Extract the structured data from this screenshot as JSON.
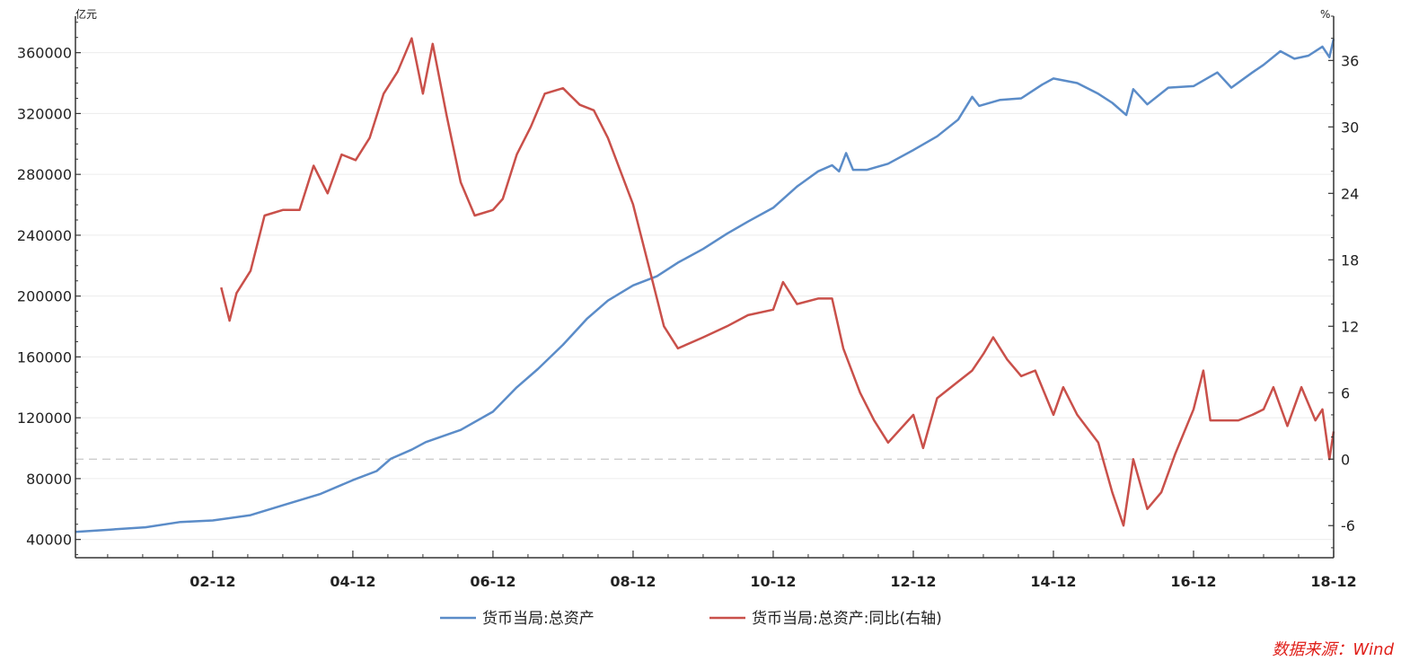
{
  "chart_data": {
    "type": "line",
    "left_axis": {
      "unit": "亿元",
      "ylim": [
        28000,
        384000
      ],
      "ticks": [
        40000,
        80000,
        120000,
        160000,
        200000,
        240000,
        280000,
        320000,
        360000
      ],
      "tick_labels": [
        "40000",
        "80000",
        "120000",
        "160000",
        "200000",
        "240000",
        "280000",
        "320000",
        "360000"
      ]
    },
    "right_axis": {
      "unit": "%",
      "ylim": [
        -8.9,
        40
      ],
      "ticks": [
        -6,
        0,
        6,
        12,
        18,
        24,
        30,
        36
      ],
      "tick_labels": [
        "-6",
        "0",
        "6",
        "12",
        "18",
        "24",
        "30",
        "36"
      ]
    },
    "x_axis": {
      "start": 2001.0,
      "end": 2018.96,
      "ticks": [
        2002.96,
        2004.96,
        2006.96,
        2008.96,
        2010.96,
        2012.96,
        2014.96,
        2016.96,
        2018.96
      ],
      "tick_labels": [
        "02-12",
        "04-12",
        "06-12",
        "08-12",
        "10-12",
        "12-12",
        "14-12",
        "16-12",
        "18-12"
      ]
    },
    "zero_line": 0,
    "series": [
      {
        "name": "货币当局:总资产",
        "axis": "left",
        "color": "#5b8cc8",
        "points": [
          [
            2001.0,
            45000
          ],
          [
            2001.5,
            46500
          ],
          [
            2002.0,
            48000
          ],
          [
            2002.5,
            51500
          ],
          [
            2002.96,
            52500
          ],
          [
            2003.5,
            56000
          ],
          [
            2004.0,
            63000
          ],
          [
            2004.5,
            70000
          ],
          [
            2004.96,
            79000
          ],
          [
            2005.3,
            85000
          ],
          [
            2005.5,
            93000
          ],
          [
            2005.8,
            99000
          ],
          [
            2006.0,
            104000
          ],
          [
            2006.5,
            112000
          ],
          [
            2006.96,
            124000
          ],
          [
            2007.3,
            140000
          ],
          [
            2007.6,
            152000
          ],
          [
            2007.96,
            168000
          ],
          [
            2008.3,
            185000
          ],
          [
            2008.6,
            197000
          ],
          [
            2008.96,
            207000
          ],
          [
            2009.3,
            213000
          ],
          [
            2009.6,
            222000
          ],
          [
            2009.96,
            231000
          ],
          [
            2010.3,
            241000
          ],
          [
            2010.6,
            249000
          ],
          [
            2010.96,
            258000
          ],
          [
            2011.3,
            272000
          ],
          [
            2011.6,
            282000
          ],
          [
            2011.8,
            286000
          ],
          [
            2011.9,
            282000
          ],
          [
            2012.0,
            294000
          ],
          [
            2012.1,
            283000
          ],
          [
            2012.3,
            283000
          ],
          [
            2012.6,
            287000
          ],
          [
            2012.96,
            296000
          ],
          [
            2013.3,
            305000
          ],
          [
            2013.6,
            316000
          ],
          [
            2013.8,
            331000
          ],
          [
            2013.9,
            325000
          ],
          [
            2014.2,
            329000
          ],
          [
            2014.5,
            330000
          ],
          [
            2014.8,
            339000
          ],
          [
            2014.96,
            343000
          ],
          [
            2015.3,
            340000
          ],
          [
            2015.6,
            333000
          ],
          [
            2015.8,
            327000
          ],
          [
            2016.0,
            319000
          ],
          [
            2016.1,
            336000
          ],
          [
            2016.3,
            326000
          ],
          [
            2016.6,
            337000
          ],
          [
            2016.96,
            338000
          ],
          [
            2017.3,
            347000
          ],
          [
            2017.5,
            337000
          ],
          [
            2017.8,
            347000
          ],
          [
            2017.96,
            352000
          ],
          [
            2018.2,
            361000
          ],
          [
            2018.4,
            356000
          ],
          [
            2018.6,
            358000
          ],
          [
            2018.8,
            364000
          ],
          [
            2018.9,
            357000
          ],
          [
            2018.96,
            369000
          ]
        ]
      },
      {
        "name": "货币当局:总资产:同比(右轴)",
        "axis": "right",
        "color": "#c9504a",
        "points": [
          [
            2003.08,
            15.5
          ],
          [
            2003.2,
            12.5
          ],
          [
            2003.3,
            15
          ],
          [
            2003.5,
            17
          ],
          [
            2003.7,
            22
          ],
          [
            2003.96,
            22.5
          ],
          [
            2004.2,
            22.5
          ],
          [
            2004.4,
            26.5
          ],
          [
            2004.6,
            24
          ],
          [
            2004.8,
            27.5
          ],
          [
            2005.0,
            27
          ],
          [
            2005.2,
            29
          ],
          [
            2005.4,
            33
          ],
          [
            2005.6,
            35
          ],
          [
            2005.8,
            38
          ],
          [
            2005.96,
            33
          ],
          [
            2006.1,
            37.5
          ],
          [
            2006.3,
            31
          ],
          [
            2006.5,
            25
          ],
          [
            2006.7,
            22
          ],
          [
            2006.96,
            22.5
          ],
          [
            2007.1,
            23.5
          ],
          [
            2007.3,
            27.5
          ],
          [
            2007.5,
            30
          ],
          [
            2007.7,
            33
          ],
          [
            2007.96,
            33.5
          ],
          [
            2008.2,
            32
          ],
          [
            2008.4,
            31.5
          ],
          [
            2008.6,
            29
          ],
          [
            2008.96,
            23
          ],
          [
            2009.2,
            17
          ],
          [
            2009.4,
            12
          ],
          [
            2009.6,
            10
          ],
          [
            2009.96,
            11
          ],
          [
            2010.3,
            12
          ],
          [
            2010.6,
            13
          ],
          [
            2010.96,
            13.5
          ],
          [
            2011.1,
            16
          ],
          [
            2011.3,
            14
          ],
          [
            2011.6,
            14.5
          ],
          [
            2011.8,
            14.5
          ],
          [
            2011.96,
            10
          ],
          [
            2012.2,
            6
          ],
          [
            2012.4,
            3.5
          ],
          [
            2012.6,
            1.5
          ],
          [
            2012.96,
            4
          ],
          [
            2013.1,
            1
          ],
          [
            2013.3,
            5.5
          ],
          [
            2013.6,
            7
          ],
          [
            2013.8,
            8
          ],
          [
            2013.96,
            9.5
          ],
          [
            2014.1,
            11
          ],
          [
            2014.3,
            9
          ],
          [
            2014.5,
            7.5
          ],
          [
            2014.7,
            8
          ],
          [
            2014.96,
            4
          ],
          [
            2015.1,
            6.5
          ],
          [
            2015.3,
            4
          ],
          [
            2015.6,
            1.5
          ],
          [
            2015.8,
            -3
          ],
          [
            2015.96,
            -6
          ],
          [
            2016.1,
            0
          ],
          [
            2016.3,
            -4.5
          ],
          [
            2016.5,
            -3
          ],
          [
            2016.7,
            0.5
          ],
          [
            2016.96,
            4.5
          ],
          [
            2017.1,
            8
          ],
          [
            2017.2,
            3.5
          ],
          [
            2017.4,
            3.5
          ],
          [
            2017.6,
            3.5
          ],
          [
            2017.8,
            4
          ],
          [
            2017.96,
            4.5
          ],
          [
            2018.1,
            6.5
          ],
          [
            2018.3,
            3
          ],
          [
            2018.5,
            6.5
          ],
          [
            2018.7,
            3.5
          ],
          [
            2018.8,
            4.5
          ],
          [
            2018.9,
            0
          ],
          [
            2018.96,
            2.5
          ]
        ]
      }
    ],
    "legend": {
      "position": "bottom-center"
    },
    "source_note": "数据来源：Wind"
  }
}
